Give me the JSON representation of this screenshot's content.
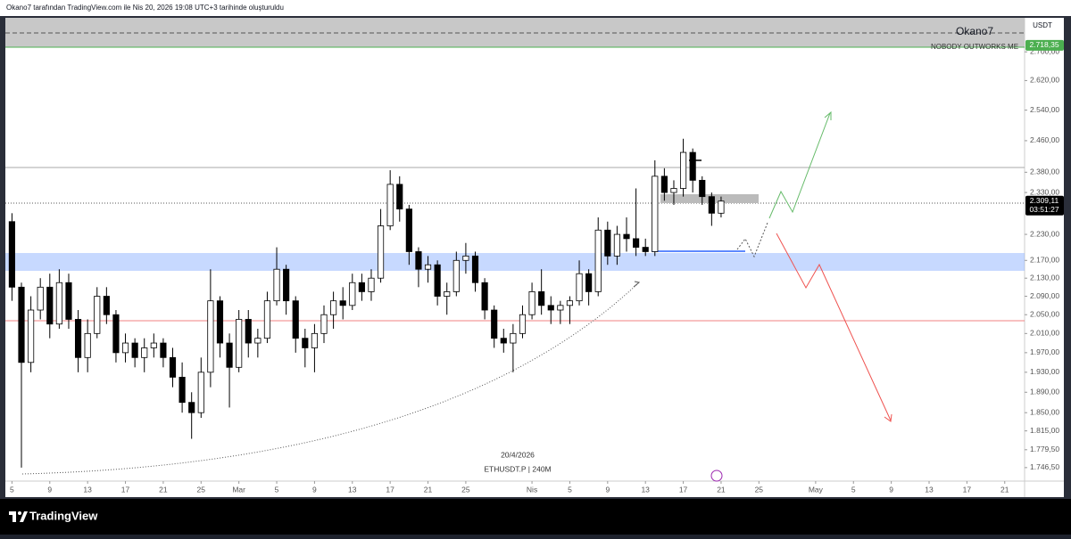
{
  "header": "Okano7 tarafından TradingView.com ile Nis 20, 2026 19:08 UTC+3 tarihinde oluşturuldu",
  "brand": "TradingView",
  "chart_data": {
    "type": "candlestick",
    "author_label": "Okano7",
    "motto": "NOBODY OUTWORKS ME",
    "currency": "USDT",
    "date_label": "20/4/2026",
    "symbol_label": "ETHUSDT.P | 240M",
    "countdown": "03:51:27",
    "log_scale": true,
    "up_color": "#ffffff",
    "down_color": "#000000",
    "x": [
      0,
      1,
      2,
      3,
      4,
      5,
      6,
      7,
      8,
      9,
      10,
      11,
      12,
      13,
      14,
      15,
      16,
      17,
      18,
      19,
      20,
      21,
      22,
      23,
      24,
      25,
      26,
      27,
      28,
      29,
      30,
      31,
      32,
      33,
      34,
      35,
      36,
      37,
      38,
      39,
      40,
      41,
      42,
      43,
      44,
      45,
      46,
      47,
      48,
      49,
      50,
      51,
      52,
      53,
      54,
      55,
      56,
      57,
      58,
      59,
      60,
      61,
      62,
      63,
      64,
      65,
      66,
      67,
      68,
      69,
      70,
      71,
      72,
      73,
      74,
      75
    ],
    "open": [
      2260,
      2110,
      1950,
      2060,
      2110,
      2030,
      2120,
      2040,
      1960,
      2010,
      2090,
      2050,
      1970,
      1990,
      1960,
      1980,
      1990,
      1960,
      1920,
      1870,
      1850,
      1930,
      2080,
      1990,
      1940,
      2040,
      1990,
      2000,
      2080,
      2150,
      2080,
      2000,
      1980,
      2010,
      2050,
      2080,
      2070,
      2120,
      2100,
      2130,
      2250,
      2350,
      2290,
      2190,
      2150,
      2160,
      2090,
      2100,
      2170,
      2180,
      2120,
      2060,
      2000,
      1990,
      2010,
      2050,
      2100,
      2070,
      2060,
      2070,
      2080,
      2140,
      2100,
      2240,
      2180,
      2230,
      2220,
      2200,
      2190,
      2370,
      2330,
      2340,
      2430,
      2360,
      2320,
      2280
    ],
    "high": [
      2280,
      2120,
      2090,
      2130,
      2140,
      2150,
      2140,
      2060,
      2040,
      2110,
      2110,
      2060,
      2010,
      2000,
      2000,
      2010,
      2000,
      1980,
      1950,
      1890,
      1960,
      2150,
      2090,
      2010,
      2060,
      2060,
      2020,
      2100,
      2200,
      2160,
      2090,
      2020,
      2030,
      2070,
      2100,
      2110,
      2140,
      2140,
      2150,
      2290,
      2385,
      2370,
      2300,
      2200,
      2180,
      2170,
      2120,
      2190,
      2210,
      2190,
      2130,
      2070,
      2020,
      2030,
      2070,
      2120,
      2150,
      2090,
      2080,
      2090,
      2170,
      2150,
      2270,
      2260,
      2250,
      2270,
      2340,
      2220,
      2410,
      2390,
      2360,
      2465,
      2440,
      2370,
      2330,
      2320
    ],
    "low": [
      2080,
      1746.5,
      1930,
      2040,
      2000,
      2020,
      2020,
      1930,
      1930,
      2000,
      2030,
      1950,
      1950,
      1940,
      1930,
      1960,
      1940,
      1900,
      1850,
      1800,
      1840,
      1900,
      1960,
      1860,
      1930,
      1960,
      1960,
      1990,
      2070,
      2050,
      1970,
      1940,
      1930,
      1990,
      2020,
      2040,
      2060,
      2080,
      2080,
      2120,
      2240,
      2260,
      2160,
      2110,
      2120,
      2070,
      2050,
      2090,
      2140,
      2100,
      2040,
      1980,
      1970,
      1930,
      2000,
      2040,
      2050,
      2030,
      2030,
      2030,
      2070,
      2070,
      2090,
      2160,
      2160,
      2190,
      2180,
      2180,
      2180,
      2310,
      2300,
      2320,
      2330,
      2300,
      2250,
      2270
    ],
    "close": [
      2110,
      1950,
      2060,
      2110,
      2030,
      2120,
      2040,
      1960,
      2010,
      2090,
      2050,
      1970,
      1990,
      1960,
      1980,
      1990,
      1960,
      1920,
      1870,
      1850,
      1930,
      2080,
      1990,
      1940,
      2040,
      1990,
      2000,
      2080,
      2150,
      2080,
      2000,
      1980,
      2010,
      2050,
      2080,
      2070,
      2120,
      2100,
      2130,
      2250,
      2350,
      2290,
      2190,
      2150,
      2160,
      2090,
      2100,
      2170,
      2180,
      2120,
      2060,
      2000,
      1990,
      2010,
      2050,
      2100,
      2070,
      2060,
      2070,
      2080,
      2140,
      2100,
      2240,
      2180,
      2230,
      2220,
      2200,
      2190,
      2370,
      2330,
      2340,
      2430,
      2360,
      2320,
      2280,
      2309.11
    ],
    "xlim": [
      -0.7,
      107.1
    ],
    "xticks": [
      {
        "value": 0,
        "label": "5"
      },
      {
        "value": 4,
        "label": "9"
      },
      {
        "value": 8,
        "label": "13"
      },
      {
        "value": 12,
        "label": "17"
      },
      {
        "value": 16,
        "label": "21"
      },
      {
        "value": 20,
        "label": "25"
      },
      {
        "value": 24,
        "label": "Mar"
      },
      {
        "value": 28,
        "label": "5"
      },
      {
        "value": 32,
        "label": "9"
      },
      {
        "value": 36,
        "label": "13"
      },
      {
        "value": 40,
        "label": "17"
      },
      {
        "value": 44,
        "label": "21"
      },
      {
        "value": 48,
        "label": "25"
      },
      {
        "value": 55,
        "label": "Nis"
      },
      {
        "value": 59,
        "label": "5"
      },
      {
        "value": 63,
        "label": "9"
      },
      {
        "value": 67,
        "label": "13"
      },
      {
        "value": 71,
        "label": "17"
      },
      {
        "value": 75,
        "label": "21"
      },
      {
        "value": 79,
        "label": "25"
      },
      {
        "value": 85,
        "label": "May"
      },
      {
        "value": 89,
        "label": "5"
      },
      {
        "value": 93,
        "label": "9"
      },
      {
        "value": 97,
        "label": "13"
      },
      {
        "value": 101,
        "label": "17"
      },
      {
        "value": 105,
        "label": "21"
      }
    ],
    "ylim": [
      1722,
      2798
    ],
    "yticks": [
      {
        "value": 2700,
        "label": "2.700,00"
      },
      {
        "value": 2620,
        "label": "2.620,00"
      },
      {
        "value": 2540,
        "label": "2.540,00"
      },
      {
        "value": 2460,
        "label": "2.460,00"
      },
      {
        "value": 2380,
        "label": "2.380,00"
      },
      {
        "value": 2330,
        "label": "2.330,00"
      },
      {
        "value": 2230,
        "label": "2.230,00"
      },
      {
        "value": 2170,
        "label": "2.170,00"
      },
      {
        "value": 2130,
        "label": "2.130,00"
      },
      {
        "value": 2090,
        "label": "2.090,00"
      },
      {
        "value": 2050,
        "label": "2.050,00"
      },
      {
        "value": 2010,
        "label": "2.010,00"
      },
      {
        "value": 1970,
        "label": "1.970,00"
      },
      {
        "value": 1930,
        "label": "1.930,00"
      },
      {
        "value": 1890,
        "label": "1.890,00"
      },
      {
        "value": 1850,
        "label": "1.850,00"
      },
      {
        "value": 1815,
        "label": "1.815,00"
      },
      {
        "value": 1779.5,
        "label": "1.779,50"
      },
      {
        "value": 1746.5,
        "label": "1.746,50"
      }
    ],
    "price_labels": [
      {
        "value": 2718.35,
        "label": "2.718,35",
        "color": "#4caf50"
      },
      {
        "value": 2309.11,
        "label": "2.309,11",
        "color": "#000000"
      }
    ]
  }
}
